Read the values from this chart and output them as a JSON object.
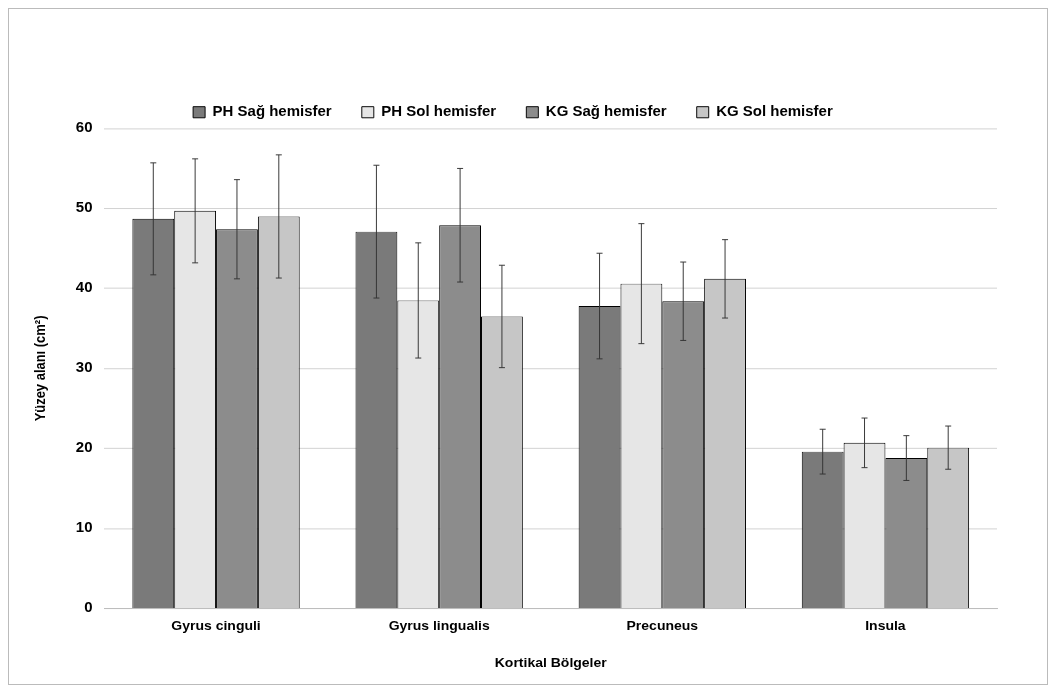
{
  "chart_data": {
    "type": "bar",
    "xlabel": "Kortikal Bölgeler",
    "ylabel": "Yüzey alanı (cm²)",
    "categories": [
      "Gyrus cinguli",
      "Gyrus lingualis",
      "Precuneus",
      "Insula"
    ],
    "series": [
      {
        "name": "PH Sağ hemisfer",
        "color": "#7a7a7a",
        "values": [
          48.7,
          47.1,
          37.8,
          19.6
        ],
        "errors": [
          7.0,
          8.3,
          6.6,
          2.8
        ]
      },
      {
        "name": "PH Sol hemisfer",
        "color": "#e6e6e6",
        "values": [
          49.7,
          38.5,
          40.6,
          20.7
        ],
        "errors": [
          6.5,
          7.2,
          7.5,
          3.1
        ]
      },
      {
        "name": "KG Sağ hemisfer",
        "color": "#8c8c8c",
        "values": [
          47.4,
          47.9,
          38.4,
          18.8
        ],
        "errors": [
          6.2,
          7.1,
          4.9,
          2.8
        ]
      },
      {
        "name": "KG Sol hemisfer",
        "color": "#c6c6c6",
        "values": [
          49.0,
          36.5,
          41.2,
          20.1
        ],
        "errors": [
          7.7,
          6.4,
          4.9,
          2.7
        ]
      }
    ],
    "ylim": [
      0,
      60
    ],
    "yticks": [
      0,
      10,
      20,
      30,
      40,
      50,
      60
    ],
    "grid": "y",
    "legend": "top"
  }
}
